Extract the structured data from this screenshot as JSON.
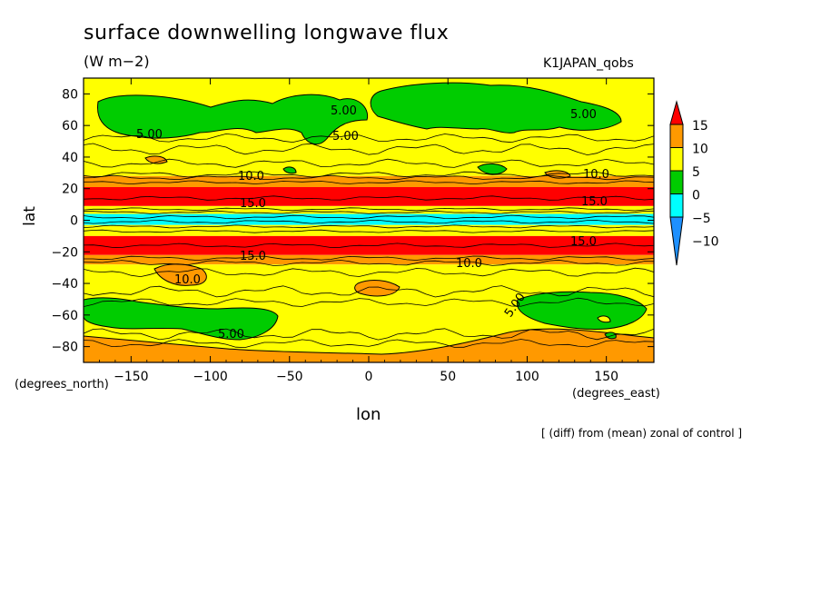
{
  "chart_data": {
    "type": "heatmap",
    "title": "surface downwelling longwave flux",
    "units": "(W m−2)",
    "run_label": "K1JAPAN_qobs",
    "xlabel": "lon",
    "ylabel": "lat",
    "x_unit": "(degrees_east)",
    "y_unit": "(degrees_north)",
    "note": "[ (diff) from (mean) zonal of control ]",
    "xlim": [
      -180,
      180
    ],
    "ylim": [
      -90,
      90
    ],
    "x_ticks": [
      -150,
      -100,
      -50,
      0,
      50,
      100,
      150
    ],
    "x_tick_labels": [
      "−150",
      "−100",
      "−50",
      "0",
      "50",
      "100",
      "150"
    ],
    "y_ticks": [
      -80,
      -60,
      -40,
      -20,
      0,
      20,
      40,
      60,
      80
    ],
    "y_tick_labels": [
      "−80",
      "−60",
      "−40",
      "−20",
      "0",
      "20",
      "40",
      "60",
      "80"
    ],
    "colorbar": {
      "levels": [
        -10,
        -5,
        0,
        5,
        10,
        15
      ],
      "labels": [
        "−10",
        "−5",
        "0",
        "5",
        "10",
        "15"
      ],
      "colors": [
        "#1e90ff",
        "#00ffff",
        "#00cc00",
        "#ffff00",
        "#ff9900",
        "#ff0000"
      ]
    },
    "latitude_bands": [
      {
        "lat_from": 90,
        "lat_to": 28,
        "level": "5 to 10"
      },
      {
        "lat_from": 28,
        "lat_to": 21,
        "level": "10 to 15"
      },
      {
        "lat_from": 21,
        "lat_to": 9,
        "level": "above 15"
      },
      {
        "lat_from": 9,
        "lat_to": 4,
        "level": "5 to 10"
      },
      {
        "lat_from": 4,
        "lat_to": -3,
        "level": "−5 to 0"
      },
      {
        "lat_from": -3,
        "lat_to": -10,
        "level": "5 to 10"
      },
      {
        "lat_from": -10,
        "lat_to": -22,
        "level": "above 15"
      },
      {
        "lat_from": -22,
        "lat_to": -28,
        "level": "10 to 15"
      },
      {
        "lat_from": -28,
        "lat_to": -90,
        "level": "5 to 10"
      }
    ],
    "contour_labels": [
      "5.00",
      "5.00",
      "5.00",
      "5.00",
      "5.00",
      "5.00",
      "10.0",
      "10.0",
      "10.0",
      "10.0",
      "15.0",
      "15.0",
      "15.0",
      "15.0"
    ]
  }
}
